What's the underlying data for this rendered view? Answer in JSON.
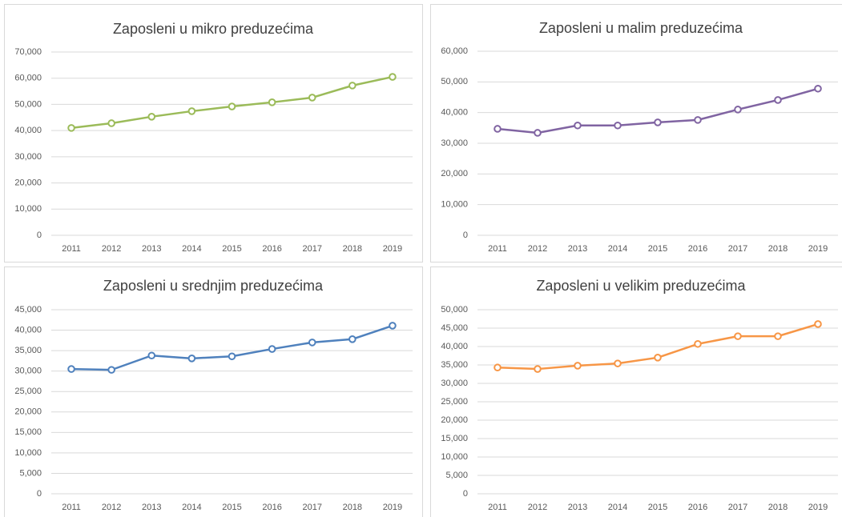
{
  "chart_data": [
    {
      "type": "line",
      "title": "Zaposleni u mikro preduzećima",
      "color": "#9bbb59",
      "categories": [
        "2011",
        "2012",
        "2013",
        "2014",
        "2015",
        "2016",
        "2017",
        "2018",
        "2019"
      ],
      "values": [
        41000,
        42800,
        45300,
        47400,
        49200,
        50800,
        52600,
        57200,
        60500
      ],
      "ylim": [
        0,
        70000
      ],
      "yticks": [
        0,
        {
          "value": 10000,
          "label": "10,000"
        },
        {
          "value": 20000,
          "label": "20,000"
        },
        {
          "value": 30000,
          "label": "30,000"
        },
        {
          "value": 40000,
          "label": "40,000"
        },
        {
          "value": 50000,
          "label": "50,000"
        },
        {
          "value": 60000,
          "label": "60,000"
        },
        {
          "value": 70000,
          "label": "70,000"
        }
      ],
      "grid": true
    },
    {
      "type": "line",
      "title": "Zaposleni u malim preduzećima",
      "color": "#8064a2",
      "categories": [
        "2011",
        "2012",
        "2013",
        "2014",
        "2015",
        "2016",
        "2017",
        "2018",
        "2019"
      ],
      "values": [
        34700,
        33400,
        35800,
        35800,
        36800,
        37600,
        41000,
        44100,
        47800
      ],
      "ylim": [
        0,
        60000
      ],
      "yticks": [
        0,
        {
          "value": 10000,
          "label": "10,000"
        },
        {
          "value": 20000,
          "label": "20,000"
        },
        {
          "value": 30000,
          "label": "30,000"
        },
        {
          "value": 40000,
          "label": "40,000"
        },
        {
          "value": 50000,
          "label": "50,000"
        },
        {
          "value": 60000,
          "label": "60,000"
        }
      ],
      "grid": true
    },
    {
      "type": "line",
      "title": "Zaposleni u srednjim preduzećima",
      "color": "#4f81bd",
      "categories": [
        "2011",
        "2012",
        "2013",
        "2014",
        "2015",
        "2016",
        "2017",
        "2018",
        "2019"
      ],
      "values": [
        30500,
        30300,
        33800,
        33100,
        33600,
        35400,
        37000,
        37800,
        41100
      ],
      "ylim": [
        0,
        45000
      ],
      "yticks": [
        0,
        {
          "value": 5000,
          "label": "5,000"
        },
        {
          "value": 10000,
          "label": "10,000"
        },
        {
          "value": 15000,
          "label": "15,000"
        },
        {
          "value": 20000,
          "label": "20,000"
        },
        {
          "value": 25000,
          "label": "25,000"
        },
        {
          "value": 30000,
          "label": "30,000"
        },
        {
          "value": 35000,
          "label": "35,000"
        },
        {
          "value": 40000,
          "label": "40,000"
        },
        {
          "value": 45000,
          "label": "45,000"
        }
      ],
      "grid": true
    },
    {
      "type": "line",
      "title": "Zaposleni u velikim preduzećima",
      "color": "#f79646",
      "categories": [
        "2011",
        "2012",
        "2013",
        "2014",
        "2015",
        "2016",
        "2017",
        "2018",
        "2019"
      ],
      "values": [
        34300,
        33900,
        34800,
        35400,
        37000,
        40700,
        42800,
        42800,
        46100
      ],
      "ylim": [
        0,
        50000
      ],
      "yticks": [
        0,
        {
          "value": 5000,
          "label": "5,000"
        },
        {
          "value": 10000,
          "label": "10,000"
        },
        {
          "value": 15000,
          "label": "15,000"
        },
        {
          "value": 20000,
          "label": "20,000"
        },
        {
          "value": 25000,
          "label": "25,000"
        },
        {
          "value": 30000,
          "label": "30,000"
        },
        {
          "value": 35000,
          "label": "35,000"
        },
        {
          "value": 40000,
          "label": "40,000"
        },
        {
          "value": 45000,
          "label": "45,000"
        },
        {
          "value": 50000,
          "label": "50,000"
        }
      ],
      "grid": true
    }
  ]
}
